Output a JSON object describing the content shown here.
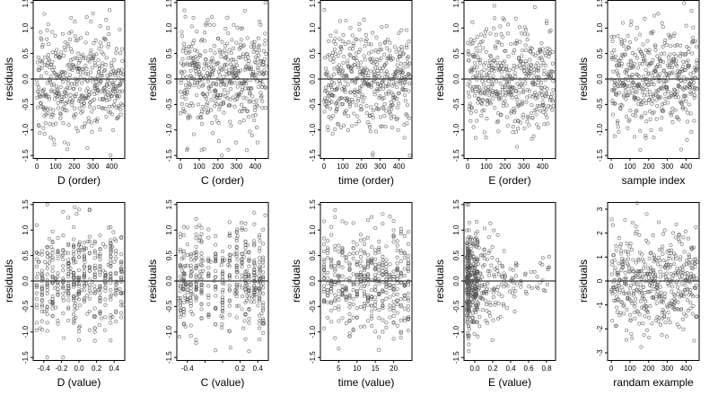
{
  "chart_data": [
    {
      "id": "d-order",
      "type": "scatter",
      "xlabel": "D (order)",
      "ylabel": "residuals",
      "xlim": [
        -20,
        470
      ],
      "ylim": [
        -1.55,
        1.55
      ],
      "xticks": [
        0,
        100,
        200,
        300,
        400
      ],
      "yticks": [
        -1.5,
        -1.0,
        -0.5,
        0.0,
        0.5,
        1.0,
        1.5
      ],
      "xtick_labels": [
        "0",
        "100",
        "200",
        "300",
        "400"
      ],
      "ytick_labels": [
        "-1.5",
        "-1.0",
        "-0.5",
        "0.0",
        "0.5",
        "1.0",
        "1.5"
      ],
      "reference_line": 0,
      "x_dist": "order",
      "seed": 11
    },
    {
      "id": "c-order",
      "type": "scatter",
      "xlabel": "C (order)",
      "ylabel": "residuals",
      "xlim": [
        -20,
        470
      ],
      "ylim": [
        -1.55,
        1.55
      ],
      "xticks": [
        0,
        100,
        200,
        300,
        400
      ],
      "yticks": [
        -1.5,
        -1.0,
        -0.5,
        0.0,
        0.5,
        1.0,
        1.5
      ],
      "xtick_labels": [
        "0",
        "100",
        "200",
        "300",
        "400"
      ],
      "ytick_labels": [
        "-1.5",
        "-1.0",
        "-0.5",
        "0.0",
        "0.5",
        "1.0",
        "1.5"
      ],
      "reference_line": 0,
      "x_dist": "order",
      "seed": 23
    },
    {
      "id": "time-order",
      "type": "scatter",
      "xlabel": "time (order)",
      "ylabel": "residuals",
      "xlim": [
        -20,
        470
      ],
      "ylim": [
        -1.55,
        1.55
      ],
      "xticks": [
        0,
        100,
        200,
        300,
        400
      ],
      "yticks": [
        -1.5,
        -1.0,
        -0.5,
        0.0,
        0.5,
        1.0,
        1.5
      ],
      "xtick_labels": [
        "0",
        "100",
        "200",
        "300",
        "400"
      ],
      "ytick_labels": [
        "-1.5",
        "-1.0",
        "-0.5",
        "0.0",
        "0.5",
        "1.0",
        "1.5"
      ],
      "reference_line": 0,
      "x_dist": "order",
      "seed": 37
    },
    {
      "id": "e-order",
      "type": "scatter",
      "xlabel": "E (order)",
      "ylabel": "residuals",
      "xlim": [
        -20,
        470
      ],
      "ylim": [
        -1.55,
        1.55
      ],
      "xticks": [
        0,
        100,
        200,
        300,
        400
      ],
      "yticks": [
        -1.5,
        -1.0,
        -0.5,
        0.0,
        0.5,
        1.0,
        1.5
      ],
      "xtick_labels": [
        "0",
        "100",
        "200",
        "300",
        "400"
      ],
      "ytick_labels": [
        "-1.5",
        "-1.0",
        "-0.5",
        "0.0",
        "0.5",
        "1.0",
        "1.5"
      ],
      "reference_line": 0,
      "x_dist": "order",
      "seed": 41
    },
    {
      "id": "sample-index",
      "type": "scatter",
      "xlabel": "sample index",
      "ylabel": "residuals",
      "xlim": [
        -20,
        470
      ],
      "ylim": [
        -1.55,
        1.55
      ],
      "xticks": [
        0,
        100,
        200,
        300,
        400
      ],
      "yticks": [
        -1.5,
        -1.0,
        -0.5,
        0.0,
        0.5,
        1.0,
        1.5
      ],
      "xtick_labels": [
        "0",
        "100",
        "200",
        "300",
        "400"
      ],
      "ytick_labels": [
        "-1.5",
        "-1.0",
        "-0.5",
        "0.0",
        "0.5",
        "1.0",
        "1.5"
      ],
      "reference_line": 0,
      "x_dist": "order",
      "seed": 53
    },
    {
      "id": "d-value",
      "type": "scatter",
      "xlabel": "D (value)",
      "ylabel": "residuals",
      "xlim": [
        -0.52,
        0.52
      ],
      "ylim": [
        -1.55,
        1.55
      ],
      "xticks": [
        -0.4,
        -0.2,
        0.0,
        0.2,
        0.4
      ],
      "yticks": [
        -1.5,
        -1.0,
        -0.5,
        0.0,
        0.5,
        1.0,
        1.5
      ],
      "xtick_labels": [
        "-0.4",
        "-0.2",
        "0.0",
        "0.2",
        "0.4"
      ],
      "ytick_labels": [
        "-1.5",
        "-1.0",
        "-0.5",
        "0.0",
        "0.5",
        "1.0",
        "1.5"
      ],
      "reference_line": 0,
      "x_dist": "dvalue",
      "seed": 61
    },
    {
      "id": "c-value",
      "type": "scatter",
      "xlabel": "C (value)",
      "ylabel": "residuals",
      "xlim": [
        -0.52,
        0.52
      ],
      "ylim": [
        -1.55,
        1.55
      ],
      "xticks": [
        -0.4,
        -0.2,
        0.0,
        0.2,
        0.4
      ],
      "yticks": [
        -1.5,
        -1.0,
        -0.5,
        0.0,
        0.5,
        1.0,
        1.5
      ],
      "xtick_labels": [
        "-0.4",
        "",
        "",
        "0.2",
        "0.4"
      ],
      "ytick_labels": [
        "-1.5",
        "-1.0",
        "-0.5",
        "0.0",
        "0.5",
        "1.0",
        "1.5"
      ],
      "reference_line": 0,
      "x_dist": "cvalue",
      "seed": 71
    },
    {
      "id": "time-value",
      "type": "scatter",
      "xlabel": "time (value)",
      "ylabel": "residuals",
      "xlim": [
        0,
        25
      ],
      "ylim": [
        -1.55,
        1.55
      ],
      "xticks": [
        5,
        10,
        15,
        20
      ],
      "yticks": [
        -1.5,
        -1.0,
        -0.5,
        0.0,
        0.5,
        1.0,
        1.5
      ],
      "xtick_labels": [
        "5",
        "10",
        "15",
        "20"
      ],
      "ytick_labels": [
        "-1.5",
        "-1.0",
        "-0.5",
        "0.0",
        "0.5",
        "1.0",
        "1.5"
      ],
      "reference_line": 0,
      "x_dist": "time",
      "seed": 83
    },
    {
      "id": "e-value",
      "type": "scatter",
      "xlabel": "E (value)",
      "ylabel": "residuals",
      "xlim": [
        -0.12,
        0.9
      ],
      "ylim": [
        -1.55,
        1.55
      ],
      "xticks": [
        0.0,
        0.2,
        0.4,
        0.6,
        0.8
      ],
      "yticks": [
        -1.5,
        -1.0,
        -0.5,
        0.0,
        0.5,
        1.0,
        1.5
      ],
      "xtick_labels": [
        "0.0",
        "0.2",
        "0.4",
        "0.6",
        "0.8"
      ],
      "ytick_labels": [
        "-1.5",
        "-1.0",
        "-0.5",
        "0.0",
        "0.5",
        "1.0",
        "1.5"
      ],
      "reference_line": 0,
      "x_dist": "evalue",
      "seed": 97
    },
    {
      "id": "random-example",
      "type": "scatter",
      "xlabel": "randam example",
      "ylabel": "residuals",
      "xlim": [
        -20,
        470
      ],
      "ylim": [
        -3.3,
        3.3
      ],
      "xticks": [
        0,
        100,
        200,
        300,
        400
      ],
      "yticks": [
        -3,
        -2,
        -1,
        0,
        1,
        2,
        3
      ],
      "xtick_labels": [
        "0",
        "100",
        "200",
        "300",
        "400"
      ],
      "ytick_labels": [
        "-3",
        "-2",
        "-1",
        "0",
        "1",
        "2",
        "3"
      ],
      "reference_line": 0,
      "x_dist": "order",
      "seed": 101
    }
  ],
  "n_points": 460,
  "point_color": "#555555"
}
